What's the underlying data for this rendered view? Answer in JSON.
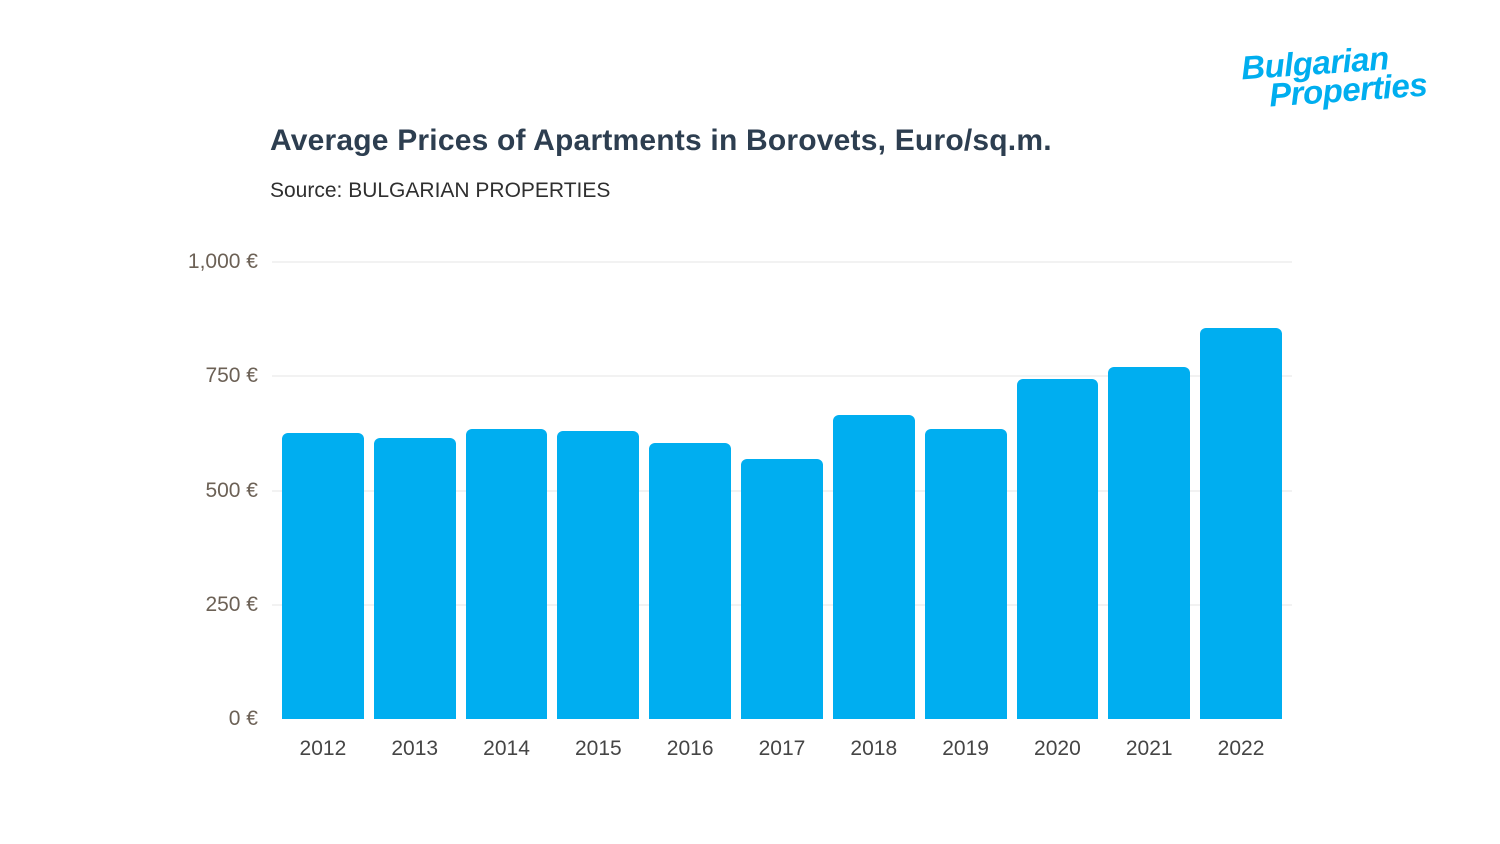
{
  "logo": {
    "line1": "Bulgarian",
    "line2": "Properties",
    "color": "#00AEEF"
  },
  "header": {
    "title": "Average Prices of Apartments in Borovets, Euro/sq.m.",
    "source": "Source: BULGARIAN PROPERTIES"
  },
  "chart_data": {
    "type": "bar",
    "title": "Average Prices of Apartments in Borovets, Euro/sq.m.",
    "source": "Source: BULGARIAN PROPERTIES",
    "categories": [
      "2012",
      "2013",
      "2014",
      "2015",
      "2016",
      "2017",
      "2018",
      "2019",
      "2020",
      "2021",
      "2022"
    ],
    "values": [
      625,
      615,
      635,
      630,
      605,
      570,
      665,
      635,
      745,
      770,
      855
    ],
    "xlabel": "",
    "ylabel": "",
    "ylim": [
      0,
      1000
    ],
    "yticks": [
      {
        "value": 0,
        "label": "0 €"
      },
      {
        "value": 250,
        "label": "250 €"
      },
      {
        "value": 500,
        "label": "500 €"
      },
      {
        "value": 750,
        "label": "750 €"
      },
      {
        "value": 1000,
        "label": "1,000 €"
      }
    ],
    "bar_color": "#00AEF0",
    "grid": true,
    "legend": false
  }
}
